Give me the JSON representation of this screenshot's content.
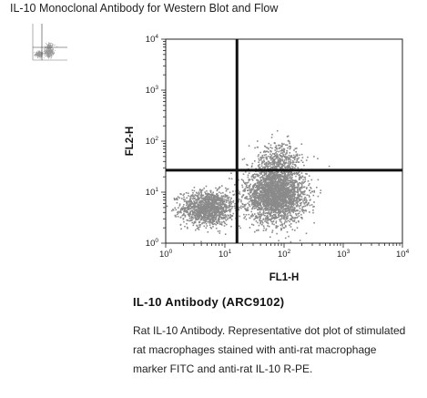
{
  "page": {
    "title": "IL-10 Monoclonal Antibody for Western Blot and Flow"
  },
  "product": {
    "heading": "IL-10 Antibody (ARC9102)",
    "description": "Rat IL-10 Antibody. Representative dot plot of stimulated rat macrophages stained with anti-rat macrophage marker FITC and anti-rat IL-10 R-PE."
  },
  "colors": {
    "dots": "#8a8a8a",
    "quadrant_lines": "#111111",
    "axis": "#222222"
  },
  "chart_data": {
    "type": "scatter",
    "xlabel": "FL1-H",
    "ylabel": "FL2-H",
    "x_scale": "log",
    "y_scale": "log",
    "xlim": [
      1,
      10000
    ],
    "ylim": [
      1,
      10000
    ],
    "x_ticks": [
      {
        "base": "10",
        "exp": "0"
      },
      {
        "base": "10",
        "exp": "1"
      },
      {
        "base": "10",
        "exp": "2"
      },
      {
        "base": "10",
        "exp": "3"
      },
      {
        "base": "10",
        "exp": "4"
      }
    ],
    "y_ticks": [
      {
        "base": "10",
        "exp": "0"
      },
      {
        "base": "10",
        "exp": "1"
      },
      {
        "base": "10",
        "exp": "2"
      },
      {
        "base": "10",
        "exp": "3"
      },
      {
        "base": "10",
        "exp": "4"
      }
    ],
    "quadrant_gate": {
      "x": 16,
      "y": 27
    },
    "populations": [
      {
        "center_x": 5,
        "center_y": 5,
        "spread_x_log": 0.22,
        "spread_y_log": 0.17,
        "count": 1300
      },
      {
        "center_x": 70,
        "center_y": 9,
        "spread_x_log": 0.25,
        "spread_y_log": 0.26,
        "count": 2600
      },
      {
        "center_x": 80,
        "center_y": 40,
        "spread_x_log": 0.2,
        "spread_y_log": 0.2,
        "count": 450
      }
    ],
    "grid": false,
    "legend": "none"
  }
}
